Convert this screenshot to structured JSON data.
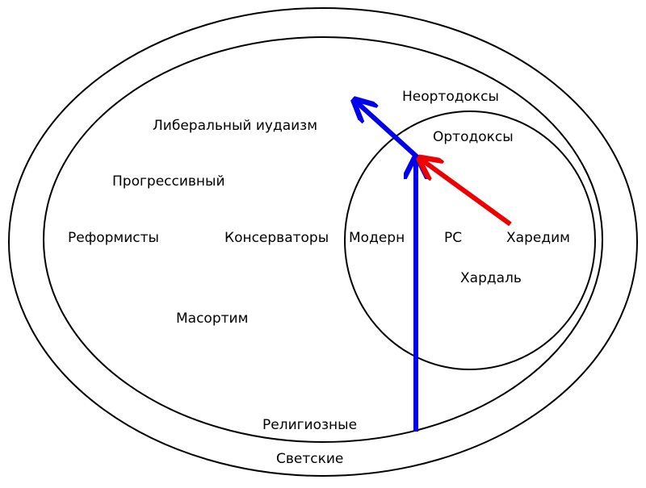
{
  "labels": {
    "secular": "Светские",
    "religious": "Религиозные",
    "neo_orthodox": "Неортодоксы",
    "orthodox": "Ортодоксы",
    "liberal": "Либеральный иудаизм",
    "progressive": "Прогрессивный",
    "reformists": "Реформисты",
    "conservatives": "Консерваторы",
    "modern": "Модерн",
    "rs": "РС",
    "haredim": "Харедим",
    "hardal": "Хардаль",
    "masorti": "Масортим"
  },
  "colors": {
    "outline": "#000000",
    "blue_arrow": "#0000ee",
    "red_arrow": "#ee0000"
  }
}
